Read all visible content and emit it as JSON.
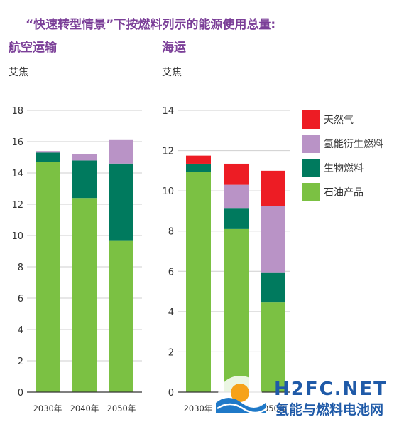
{
  "chart_data": [
    {
      "type": "bar",
      "stacked": true,
      "title": "“快速转型情景”下按燃料列示的能源使用总量:",
      "subtitle": "航空运输",
      "ylabel": "艾焦",
      "categories": [
        "2030年",
        "2040年",
        "2050年"
      ],
      "ylim": [
        0,
        18
      ],
      "yticks": [
        0,
        2,
        4,
        6,
        8,
        10,
        12,
        14,
        16,
        18
      ],
      "grid": true,
      "series": [
        {
          "name": "石油产品",
          "color": "#7bc143",
          "values": [
            14.7,
            12.4,
            9.7
          ]
        },
        {
          "name": "生物燃料",
          "color": "#007a5e",
          "values": [
            0.6,
            2.4,
            4.9
          ]
        },
        {
          "name": "氢能衍生燃料",
          "color": "#b993c6",
          "values": [
            0.1,
            0.4,
            1.5
          ]
        },
        {
          "name": "天然气",
          "color": "#ed1c24",
          "values": [
            0,
            0,
            0
          ]
        }
      ]
    },
    {
      "type": "bar",
      "stacked": true,
      "subtitle": "海运",
      "ylabel": "艾焦",
      "categories": [
        "2030年",
        "2040年",
        "2050年"
      ],
      "ylim": [
        0,
        14
      ],
      "yticks": [
        0,
        2,
        4,
        6,
        8,
        10,
        12,
        14
      ],
      "grid": true,
      "legend_position": "right",
      "series": [
        {
          "name": "石油产品",
          "color": "#7bc143",
          "values": [
            10.95,
            8.1,
            4.45
          ]
        },
        {
          "name": "生物燃料",
          "color": "#007a5e",
          "values": [
            0.4,
            1.05,
            1.5
          ]
        },
        {
          "name": "氢能衍生燃料",
          "color": "#b993c6",
          "values": [
            0,
            1.15,
            3.3
          ]
        },
        {
          "name": "天然气",
          "color": "#ed1c24",
          "values": [
            0.4,
            1.05,
            1.75
          ]
        }
      ]
    }
  ],
  "legend": [
    {
      "label": "天然气",
      "color": "#ed1c24"
    },
    {
      "label": "氢能衍生燃料",
      "color": "#b993c6"
    },
    {
      "label": "生物燃料",
      "color": "#007a5e"
    },
    {
      "label": "石油产品",
      "color": "#7bc143"
    }
  ],
  "watermark": {
    "logo_text": "H2FC.NET",
    "tagline": "氢能与燃料电池网"
  }
}
